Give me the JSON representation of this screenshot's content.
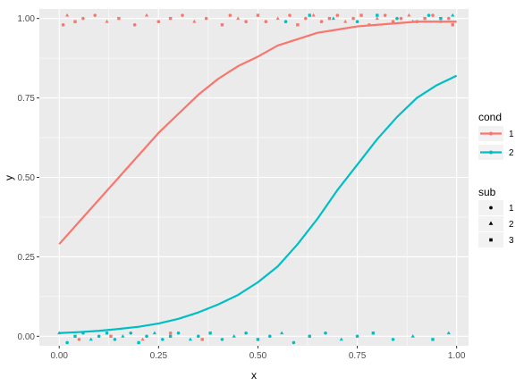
{
  "chart_data": {
    "type": "scatter",
    "xlabel": "x",
    "ylabel": "y",
    "xlim": [
      -0.05,
      1.03
    ],
    "ylim": [
      -0.03,
      1.03
    ],
    "x_ticks": [
      0.0,
      0.25,
      0.5,
      0.75,
      1.0
    ],
    "x_tick_labels": [
      "0.00",
      "0.25",
      "0.50",
      "0.75",
      "1.00"
    ],
    "y_ticks": [
      0.0,
      0.25,
      0.5,
      0.75,
      1.0
    ],
    "y_tick_labels": [
      "0.00",
      "0.25",
      "0.50",
      "0.75",
      "1.00"
    ],
    "grid": true,
    "legend_placement": "right",
    "legends": [
      {
        "title": "cond",
        "kind": "color",
        "entries": [
          {
            "label": "1",
            "color": "#F8766D"
          },
          {
            "label": "2",
            "color": "#00BFC4"
          }
        ]
      },
      {
        "title": "sub",
        "kind": "shape",
        "entries": [
          {
            "label": "1",
            "shape": "circle"
          },
          {
            "label": "2",
            "shape": "triangle"
          },
          {
            "label": "3",
            "shape": "square"
          }
        ]
      }
    ],
    "curves": [
      {
        "cond": "1",
        "color": "#F8766D",
        "x": [
          0,
          0.05,
          0.1,
          0.15,
          0.2,
          0.25,
          0.3,
          0.35,
          0.4,
          0.45,
          0.5,
          0.55,
          0.6,
          0.65,
          0.7,
          0.75,
          0.8,
          0.85,
          0.9,
          0.95,
          1.0
        ],
        "y": [
          0.29,
          0.36,
          0.43,
          0.5,
          0.57,
          0.64,
          0.7,
          0.76,
          0.81,
          0.85,
          0.88,
          0.915,
          0.935,
          0.955,
          0.965,
          0.975,
          0.98,
          0.985,
          0.99,
          0.99,
          0.99
        ]
      },
      {
        "cond": "2",
        "color": "#00BFC4",
        "x": [
          0,
          0.05,
          0.1,
          0.15,
          0.2,
          0.25,
          0.3,
          0.35,
          0.4,
          0.45,
          0.5,
          0.55,
          0.6,
          0.65,
          0.7,
          0.75,
          0.8,
          0.85,
          0.9,
          0.95,
          1.0
        ],
        "y": [
          0.01,
          0.013,
          0.017,
          0.023,
          0.03,
          0.04,
          0.055,
          0.075,
          0.1,
          0.13,
          0.17,
          0.22,
          0.29,
          0.37,
          0.46,
          0.54,
          0.62,
          0.69,
          0.75,
          0.79,
          0.82
        ]
      }
    ],
    "points": [
      {
        "x": 0.01,
        "y": 0.98,
        "cond": "1",
        "sub": "1"
      },
      {
        "x": 0.02,
        "y": 1.01,
        "cond": "1",
        "sub": "2"
      },
      {
        "x": 0.04,
        "y": 0.99,
        "cond": "1",
        "sub": "3"
      },
      {
        "x": 0.06,
        "y": 1.0,
        "cond": "1",
        "sub": "1"
      },
      {
        "x": 0.09,
        "y": 1.01,
        "cond": "1",
        "sub": "1"
      },
      {
        "x": 0.12,
        "y": 0.99,
        "cond": "1",
        "sub": "2"
      },
      {
        "x": 0.15,
        "y": 1.0,
        "cond": "1",
        "sub": "3"
      },
      {
        "x": 0.19,
        "y": 0.98,
        "cond": "1",
        "sub": "1"
      },
      {
        "x": 0.22,
        "y": 1.01,
        "cond": "1",
        "sub": "2"
      },
      {
        "x": 0.25,
        "y": 0.99,
        "cond": "1",
        "sub": "1"
      },
      {
        "x": 0.28,
        "y": 1.0,
        "cond": "1",
        "sub": "3"
      },
      {
        "x": 0.31,
        "y": 1.01,
        "cond": "1",
        "sub": "1"
      },
      {
        "x": 0.34,
        "y": 0.99,
        "cond": "1",
        "sub": "2"
      },
      {
        "x": 0.37,
        "y": 1.0,
        "cond": "1",
        "sub": "1"
      },
      {
        "x": 0.41,
        "y": 0.98,
        "cond": "1",
        "sub": "3"
      },
      {
        "x": 0.43,
        "y": 1.01,
        "cond": "1",
        "sub": "1"
      },
      {
        "x": 0.45,
        "y": 1.0,
        "cond": "1",
        "sub": "2"
      },
      {
        "x": 0.47,
        "y": 0.99,
        "cond": "1",
        "sub": "1"
      },
      {
        "x": 0.5,
        "y": 1.01,
        "cond": "1",
        "sub": "3"
      },
      {
        "x": 0.52,
        "y": 0.99,
        "cond": "1",
        "sub": "1"
      },
      {
        "x": 0.55,
        "y": 1.0,
        "cond": "1",
        "sub": "2"
      },
      {
        "x": 0.58,
        "y": 1.01,
        "cond": "1",
        "sub": "1"
      },
      {
        "x": 0.6,
        "y": 0.98,
        "cond": "1",
        "sub": "3"
      },
      {
        "x": 0.62,
        "y": 1.0,
        "cond": "1",
        "sub": "1"
      },
      {
        "x": 0.64,
        "y": 1.01,
        "cond": "1",
        "sub": "2"
      },
      {
        "x": 0.66,
        "y": 0.99,
        "cond": "1",
        "sub": "1"
      },
      {
        "x": 0.68,
        "y": 1.0,
        "cond": "1",
        "sub": "3"
      },
      {
        "x": 0.7,
        "y": 1.01,
        "cond": "1",
        "sub": "1"
      },
      {
        "x": 0.72,
        "y": 0.99,
        "cond": "1",
        "sub": "2"
      },
      {
        "x": 0.74,
        "y": 1.0,
        "cond": "1",
        "sub": "1"
      },
      {
        "x": 0.76,
        "y": 1.01,
        "cond": "1",
        "sub": "3"
      },
      {
        "x": 0.78,
        "y": 0.98,
        "cond": "1",
        "sub": "1"
      },
      {
        "x": 0.8,
        "y": 1.0,
        "cond": "1",
        "sub": "2"
      },
      {
        "x": 0.82,
        "y": 1.01,
        "cond": "1",
        "sub": "1"
      },
      {
        "x": 0.84,
        "y": 0.99,
        "cond": "1",
        "sub": "3"
      },
      {
        "x": 0.86,
        "y": 1.0,
        "cond": "1",
        "sub": "1"
      },
      {
        "x": 0.88,
        "y": 1.01,
        "cond": "1",
        "sub": "2"
      },
      {
        "x": 0.9,
        "y": 0.99,
        "cond": "1",
        "sub": "1"
      },
      {
        "x": 0.92,
        "y": 1.0,
        "cond": "1",
        "sub": "3"
      },
      {
        "x": 0.94,
        "y": 1.01,
        "cond": "1",
        "sub": "1"
      },
      {
        "x": 0.96,
        "y": 0.99,
        "cond": "1",
        "sub": "2"
      },
      {
        "x": 0.98,
        "y": 1.0,
        "cond": "1",
        "sub": "1"
      },
      {
        "x": 0.99,
        "y": 0.98,
        "cond": "1",
        "sub": "3"
      },
      {
        "x": 0.05,
        "y": -0.01,
        "cond": "1",
        "sub": "1"
      },
      {
        "x": 0.13,
        "y": 0.0,
        "cond": "1",
        "sub": "3"
      },
      {
        "x": 0.21,
        "y": -0.01,
        "cond": "1",
        "sub": "2"
      },
      {
        "x": 0.28,
        "y": 0.01,
        "cond": "1",
        "sub": "1"
      },
      {
        "x": 0.36,
        "y": -0.01,
        "cond": "1",
        "sub": "3"
      },
      {
        "x": 0.0,
        "y": 0.01,
        "cond": "2",
        "sub": "2"
      },
      {
        "x": 0.02,
        "y": -0.02,
        "cond": "2",
        "sub": "1"
      },
      {
        "x": 0.04,
        "y": 0.0,
        "cond": "2",
        "sub": "3"
      },
      {
        "x": 0.06,
        "y": 0.01,
        "cond": "2",
        "sub": "1"
      },
      {
        "x": 0.08,
        "y": -0.01,
        "cond": "2",
        "sub": "2"
      },
      {
        "x": 0.1,
        "y": 0.0,
        "cond": "2",
        "sub": "1"
      },
      {
        "x": 0.12,
        "y": 0.01,
        "cond": "2",
        "sub": "3"
      },
      {
        "x": 0.14,
        "y": -0.01,
        "cond": "2",
        "sub": "1"
      },
      {
        "x": 0.16,
        "y": 0.0,
        "cond": "2",
        "sub": "2"
      },
      {
        "x": 0.18,
        "y": 0.01,
        "cond": "2",
        "sub": "1"
      },
      {
        "x": 0.2,
        "y": -0.02,
        "cond": "2",
        "sub": "3"
      },
      {
        "x": 0.22,
        "y": 0.0,
        "cond": "2",
        "sub": "1"
      },
      {
        "x": 0.24,
        "y": 0.01,
        "cond": "2",
        "sub": "2"
      },
      {
        "x": 0.26,
        "y": -0.01,
        "cond": "2",
        "sub": "1"
      },
      {
        "x": 0.28,
        "y": 0.0,
        "cond": "2",
        "sub": "3"
      },
      {
        "x": 0.3,
        "y": 0.01,
        "cond": "2",
        "sub": "1"
      },
      {
        "x": 0.33,
        "y": -0.01,
        "cond": "2",
        "sub": "2"
      },
      {
        "x": 0.35,
        "y": 0.0,
        "cond": "2",
        "sub": "1"
      },
      {
        "x": 0.38,
        "y": 0.01,
        "cond": "2",
        "sub": "3"
      },
      {
        "x": 0.41,
        "y": -0.01,
        "cond": "2",
        "sub": "1"
      },
      {
        "x": 0.44,
        "y": 0.0,
        "cond": "2",
        "sub": "2"
      },
      {
        "x": 0.47,
        "y": 0.01,
        "cond": "2",
        "sub": "1"
      },
      {
        "x": 0.5,
        "y": -0.01,
        "cond": "2",
        "sub": "3"
      },
      {
        "x": 0.53,
        "y": 0.0,
        "cond": "2",
        "sub": "1"
      },
      {
        "x": 0.56,
        "y": 0.01,
        "cond": "2",
        "sub": "2"
      },
      {
        "x": 0.59,
        "y": -0.02,
        "cond": "2",
        "sub": "1"
      },
      {
        "x": 0.63,
        "y": 0.0,
        "cond": "2",
        "sub": "3"
      },
      {
        "x": 0.67,
        "y": 0.01,
        "cond": "2",
        "sub": "1"
      },
      {
        "x": 0.71,
        "y": -0.01,
        "cond": "2",
        "sub": "2"
      },
      {
        "x": 0.75,
        "y": 0.0,
        "cond": "2",
        "sub": "1"
      },
      {
        "x": 0.79,
        "y": 0.01,
        "cond": "2",
        "sub": "3"
      },
      {
        "x": 0.84,
        "y": -0.01,
        "cond": "2",
        "sub": "1"
      },
      {
        "x": 0.89,
        "y": 0.0,
        "cond": "2",
        "sub": "2"
      },
      {
        "x": 0.94,
        "y": -0.01,
        "cond": "2",
        "sub": "3"
      },
      {
        "x": 0.98,
        "y": 0.01,
        "cond": "2",
        "sub": "2"
      },
      {
        "x": 0.57,
        "y": 0.99,
        "cond": "2",
        "sub": "1"
      },
      {
        "x": 0.63,
        "y": 1.01,
        "cond": "2",
        "sub": "3"
      },
      {
        "x": 0.69,
        "y": 1.0,
        "cond": "2",
        "sub": "2"
      },
      {
        "x": 0.75,
        "y": 0.99,
        "cond": "2",
        "sub": "1"
      },
      {
        "x": 0.8,
        "y": 1.01,
        "cond": "2",
        "sub": "3"
      },
      {
        "x": 0.85,
        "y": 1.0,
        "cond": "2",
        "sub": "1"
      },
      {
        "x": 0.89,
        "y": 0.99,
        "cond": "2",
        "sub": "2"
      },
      {
        "x": 0.93,
        "y": 1.01,
        "cond": "2",
        "sub": "1"
      },
      {
        "x": 0.96,
        "y": 1.0,
        "cond": "2",
        "sub": "3"
      },
      {
        "x": 0.99,
        "y": 1.01,
        "cond": "2",
        "sub": "2"
      }
    ]
  }
}
